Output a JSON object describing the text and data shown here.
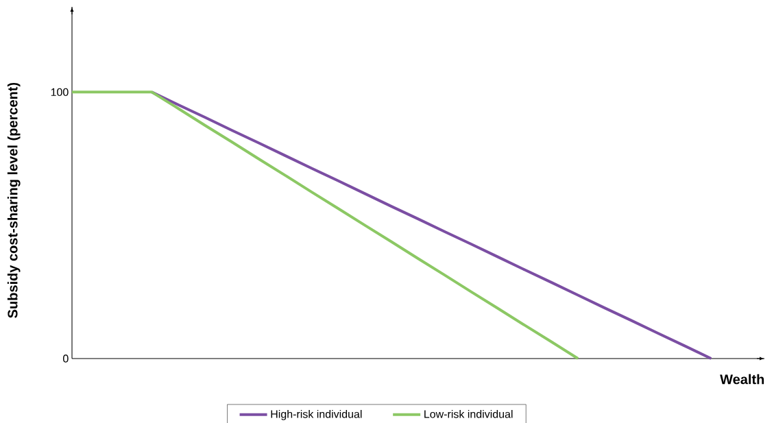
{
  "chart_data": {
    "type": "line",
    "xlabel": "Wealth",
    "ylabel": "Subsidy cost-sharing level (percent)",
    "ylim": [
      0,
      132
    ],
    "yticks": [
      0,
      100
    ],
    "tick_labels": "y",
    "legend": "bottom",
    "categories": [
      null,
      null,
      null,
      null,
      null,
      null,
      null,
      null,
      null,
      null,
      null,
      null,
      null,
      null,
      null,
      null,
      null,
      null,
      null,
      null,
      null,
      null,
      null,
      null,
      null,
      null,
      null
    ],
    "series": [
      {
        "name": "High-risk individual",
        "color": "#7b4ea3",
        "values": [
          null,
          null,
          null,
          100,
          95.2,
          90.5,
          85.7,
          81,
          76.2,
          71.4,
          66.7,
          61.9,
          57.1,
          52.4,
          47.6,
          42.9,
          38.1,
          33.3,
          28.6,
          23.8,
          19,
          14.3,
          9.5,
          4.8,
          0,
          null,
          null
        ]
      },
      {
        "name": "Low-risk individual",
        "color": "#8cc864",
        "values": [
          100,
          100,
          100,
          100,
          93.8,
          87.5,
          81.3,
          75,
          68.8,
          62.5,
          56.3,
          50,
          43.8,
          37.5,
          31.3,
          25,
          18.8,
          12.5,
          6.3,
          0,
          null,
          null,
          null,
          null,
          null,
          null,
          null
        ]
      }
    ]
  }
}
